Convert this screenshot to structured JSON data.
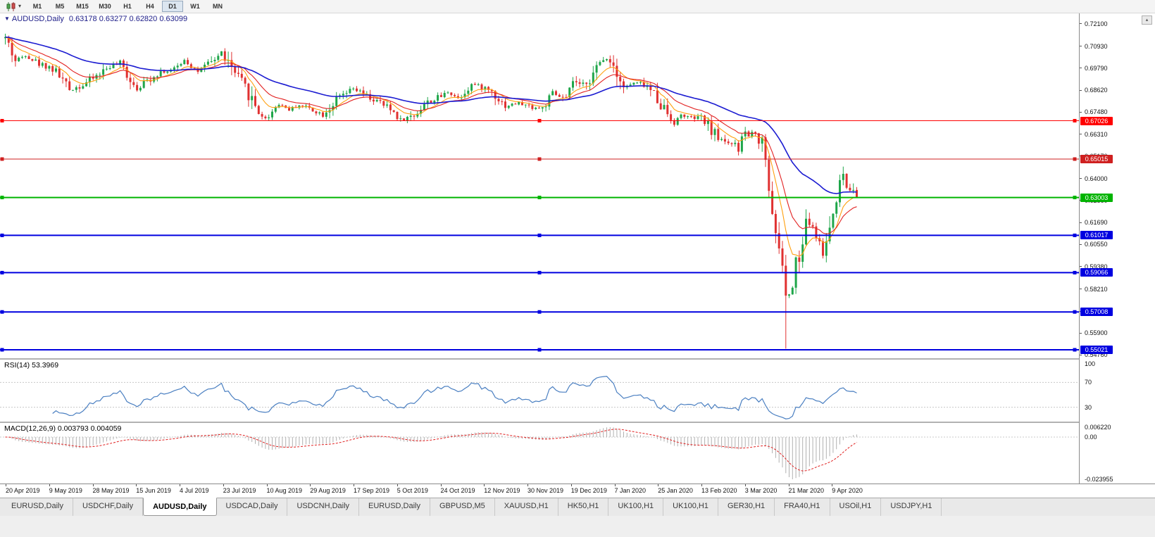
{
  "toolbar": {
    "timeframes": [
      "M1",
      "M5",
      "M15",
      "M30",
      "H1",
      "H4",
      "D1",
      "W1",
      "MN"
    ],
    "active_timeframe": "D1",
    "chart_icon_caret": "▾"
  },
  "chart": {
    "symbol_title": "AUDUSD,Daily",
    "ohlc_text": "0.63178 0.63277 0.62820 0.63099",
    "collapse_glyph": "▼",
    "price_axis_labels": [
      "0.72100",
      "0.70930",
      "0.69790",
      "0.68620",
      "0.67480",
      "0.66310",
      "0.65170",
      "0.64000",
      "0.62860",
      "0.61690",
      "0.60550",
      "0.59380",
      "0.58210",
      "0.57040",
      "0.55900",
      "0.54760"
    ],
    "hlines": [
      {
        "price": 0.67026,
        "label": "0.67026",
        "color": "#ff0000",
        "width": 1
      },
      {
        "price": 0.65015,
        "label": "0.65015",
        "color": "#cf2020",
        "width": 1
      },
      {
        "price": 0.63003,
        "label": "0.63003",
        "color": "#00b400",
        "width": 2
      },
      {
        "price": 0.61017,
        "label": "0.61017",
        "color": "#0000e0",
        "width": 2
      },
      {
        "price": 0.59066,
        "label": "0.59066",
        "color": "#0000e0",
        "width": 2
      },
      {
        "price": 0.57008,
        "label": "0.57008",
        "color": "#0000e0",
        "width": 2
      },
      {
        "price": 0.55021,
        "label": "0.55021",
        "color": "#0000e0",
        "width": 2
      }
    ],
    "date_labels": [
      "20 Apr 2019",
      "9 May 2019",
      "28 May 2019",
      "15 Jun 2019",
      "4 Jul 2019",
      "23 Jul 2019",
      "10 Aug 2019",
      "29 Aug 2019",
      "17 Sep 2019",
      "5 Oct 2019",
      "24 Oct 2019",
      "12 Nov 2019",
      "30 Nov 2019",
      "19 Dec 2019",
      "7 Jan 2020",
      "25 Jan 2020",
      "13 Feb 2020",
      "3 Mar 2020",
      "21 Mar 2020",
      "9 Apr 2020"
    ]
  },
  "rsi": {
    "name": "RSI(14)",
    "value": "53.3969",
    "levels": [
      70,
      30
    ],
    "axis_labels": [
      {
        "value": 100,
        "text": "100"
      },
      {
        "value": 70,
        "text": "70"
      },
      {
        "value": 30,
        "text": "30"
      }
    ]
  },
  "macd": {
    "name": "MACD(12,26,9)",
    "values_text": "0.003793 0.004059",
    "axis_labels": [
      "0.006220",
      "0.00",
      "-0.023955"
    ]
  },
  "tabs": {
    "items": [
      "EURUSD,Daily",
      "USDCHF,Daily",
      "AUDUSD,Daily",
      "USDCAD,Daily",
      "USDCNH,Daily",
      "EURUSD,Daily",
      "GBPUSD,M5",
      "XAUUSD,H1",
      "HK50,H1",
      "UK100,H1",
      "UK100,H1",
      "GER30,H1",
      "FRA40,H1",
      "USOil,H1",
      "USDJPY,H1"
    ],
    "active_index": 2
  },
  "scrollbar": {
    "up_glyph": "▴"
  },
  "colors": {
    "bull": "#1fa64a",
    "bear": "#e03131",
    "rsi_line": "#4a7fc1",
    "macd_hist": "#b0b0b0",
    "macd_signal": "#e02020",
    "title_text": "#20208a"
  },
  "chart_data": {
    "type": "candlestick",
    "symbol": "AUDUSD",
    "timeframe": "Daily",
    "candle_count": 253,
    "seed": 42,
    "price_top": 0.7265,
    "price_bottom": 0.5458,
    "spike_low": 0.5508,
    "moving_averages": [
      {
        "period": 8,
        "color": "#ffa010",
        "width": 1.1
      },
      {
        "period": 16,
        "color": "#e22222",
        "width": 1.1
      },
      {
        "period": 45,
        "color": "#1b1bd1",
        "width": 1.6
      }
    ],
    "indicators": {
      "rsi_period": 14,
      "macd": [
        12,
        26,
        9
      ]
    },
    "anchors": [
      [
        0.0,
        0.7135
      ],
      [
        0.004,
        0.71
      ],
      [
        0.012,
        0.7015
      ],
      [
        0.024,
        0.7048
      ],
      [
        0.04,
        0.7
      ],
      [
        0.052,
        0.6985
      ],
      [
        0.063,
        0.6945
      ],
      [
        0.075,
        0.6865
      ],
      [
        0.091,
        0.689
      ],
      [
        0.103,
        0.6925
      ],
      [
        0.123,
        0.699
      ],
      [
        0.135,
        0.7
      ],
      [
        0.155,
        0.687
      ],
      [
        0.17,
        0.6925
      ],
      [
        0.182,
        0.696
      ],
      [
        0.198,
        0.6965
      ],
      [
        0.21,
        0.7025
      ],
      [
        0.226,
        0.696
      ],
      [
        0.24,
        0.7
      ],
      [
        0.254,
        0.706
      ],
      [
        0.27,
        0.6945
      ],
      [
        0.286,
        0.6845
      ],
      [
        0.297,
        0.6755
      ],
      [
        0.306,
        0.671
      ],
      [
        0.321,
        0.6795
      ],
      [
        0.333,
        0.676
      ],
      [
        0.345,
        0.6785
      ],
      [
        0.357,
        0.677
      ],
      [
        0.373,
        0.6735
      ],
      [
        0.389,
        0.681
      ],
      [
        0.409,
        0.687
      ],
      [
        0.424,
        0.683
      ],
      [
        0.44,
        0.6795
      ],
      [
        0.456,
        0.675
      ],
      [
        0.464,
        0.6705
      ],
      [
        0.48,
        0.673
      ],
      [
        0.492,
        0.679
      ],
      [
        0.508,
        0.682
      ],
      [
        0.52,
        0.6855
      ],
      [
        0.532,
        0.682
      ],
      [
        0.548,
        0.6895
      ],
      [
        0.571,
        0.686
      ],
      [
        0.587,
        0.678
      ],
      [
        0.603,
        0.6795
      ],
      [
        0.617,
        0.6775
      ],
      [
        0.631,
        0.6765
      ],
      [
        0.643,
        0.6845
      ],
      [
        0.659,
        0.681
      ],
      [
        0.667,
        0.6915
      ],
      [
        0.675,
        0.688
      ],
      [
        0.69,
        0.694
      ],
      [
        0.701,
        0.7021
      ],
      [
        0.706,
        0.7032
      ],
      [
        0.717,
        0.6985
      ],
      [
        0.727,
        0.687
      ],
      [
        0.737,
        0.69
      ],
      [
        0.749,
        0.6895
      ],
      [
        0.762,
        0.6845
      ],
      [
        0.775,
        0.676
      ],
      [
        0.786,
        0.669
      ],
      [
        0.794,
        0.6735
      ],
      [
        0.806,
        0.6715
      ],
      [
        0.818,
        0.6715
      ],
      [
        0.838,
        0.661
      ],
      [
        0.846,
        0.66
      ],
      [
        0.858,
        0.657
      ],
      [
        0.862,
        0.6515
      ],
      [
        0.866,
        0.6655
      ],
      [
        0.874,
        0.662
      ],
      [
        0.882,
        0.666
      ],
      [
        0.886,
        0.658
      ],
      [
        0.89,
        0.6605
      ],
      [
        0.894,
        0.649
      ],
      [
        0.898,
        0.629
      ],
      [
        0.902,
        0.6185
      ],
      [
        0.906,
        0.612
      ],
      [
        0.909,
        0.599
      ],
      [
        0.913,
        0.597
      ],
      [
        0.917,
        0.5745
      ],
      [
        0.921,
        0.58
      ],
      [
        0.925,
        0.5825
      ],
      [
        0.929,
        0.597
      ],
      [
        0.933,
        0.596
      ],
      [
        0.937,
        0.6065
      ],
      [
        0.941,
        0.617
      ],
      [
        0.945,
        0.617
      ],
      [
        0.949,
        0.6135
      ],
      [
        0.953,
        0.6095
      ],
      [
        0.957,
        0.606
      ],
      [
        0.961,
        0.5995
      ],
      [
        0.965,
        0.6085
      ],
      [
        0.969,
        0.6165
      ],
      [
        0.973,
        0.6235
      ],
      [
        0.977,
        0.6335
      ],
      [
        0.981,
        0.638
      ],
      [
        0.985,
        0.6445
      ],
      [
        0.989,
        0.6325
      ],
      [
        0.993,
        0.6355
      ],
      [
        0.997,
        0.6365
      ],
      [
        1.0,
        0.631
      ]
    ]
  }
}
